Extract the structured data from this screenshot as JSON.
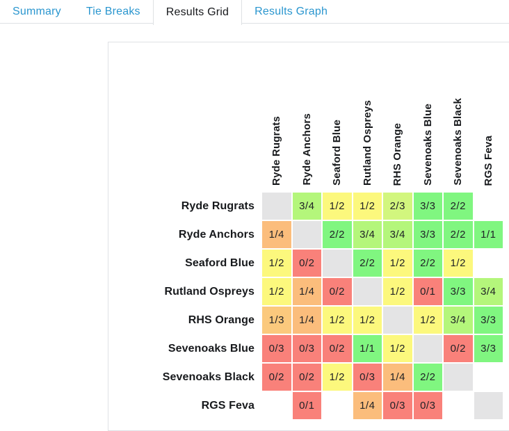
{
  "tabs": {
    "items": [
      {
        "label": "Summary",
        "active": false
      },
      {
        "label": "Tie Breaks",
        "active": false
      },
      {
        "label": "Results Grid",
        "active": true
      },
      {
        "label": "Results Graph",
        "active": false
      }
    ]
  },
  "grid": {
    "teams": [
      "Ryde Rugrats",
      "Ryde Anchors",
      "Seaford Blue",
      "Rutland Ospreys",
      "RHS Orange",
      "Sevenoaks Blue",
      "Sevenoaks Black",
      "RGS Feva"
    ],
    "results": [
      [
        null,
        "3/4",
        "1/2",
        "1/2",
        "2/3",
        "3/3",
        "2/2",
        ""
      ],
      [
        "1/4",
        null,
        "2/2",
        "3/4",
        "3/4",
        "3/3",
        "2/2",
        "1/1"
      ],
      [
        "1/2",
        "0/2",
        null,
        "2/2",
        "1/2",
        "2/2",
        "1/2",
        ""
      ],
      [
        "1/2",
        "1/4",
        "0/2",
        null,
        "1/2",
        "0/1",
        "3/3",
        "3/4"
      ],
      [
        "1/3",
        "1/4",
        "1/2",
        "1/2",
        null,
        "1/2",
        "3/4",
        "3/3"
      ],
      [
        "0/3",
        "0/3",
        "0/2",
        "1/1",
        "1/2",
        null,
        "0/2",
        "3/3"
      ],
      [
        "0/2",
        "0/2",
        "1/2",
        "0/3",
        "1/4",
        "2/2",
        null,
        ""
      ],
      [
        "",
        "0/1",
        "",
        "1/4",
        "0/3",
        "0/3",
        "",
        null
      ]
    ],
    "colors": {
      "win_100": "#80f680",
      "win_75": "#b4f67b",
      "win_67": "#d2f67e",
      "win_50": "#fcf87d",
      "win_33": "#fbc97d",
      "win_25": "#fbbd7c",
      "win_0": "#f9817a",
      "diagonal": "#e4e4e5",
      "empty": "#ffffff"
    },
    "value_color_map": {
      "1/1": "win_100",
      "2/2": "win_100",
      "3/3": "win_100",
      "3/4": "win_75",
      "2/3": "win_67",
      "1/2": "win_50",
      "1/3": "win_33",
      "1/4": "win_25",
      "0/1": "win_0",
      "0/2": "win_0",
      "0/3": "win_0"
    }
  },
  "ui_colors": {
    "tab_link": "#2a96cf",
    "tab_active_text": "#17191c",
    "tabbar_border": "#dee1e4",
    "panel_border": "#dfe1e5"
  }
}
